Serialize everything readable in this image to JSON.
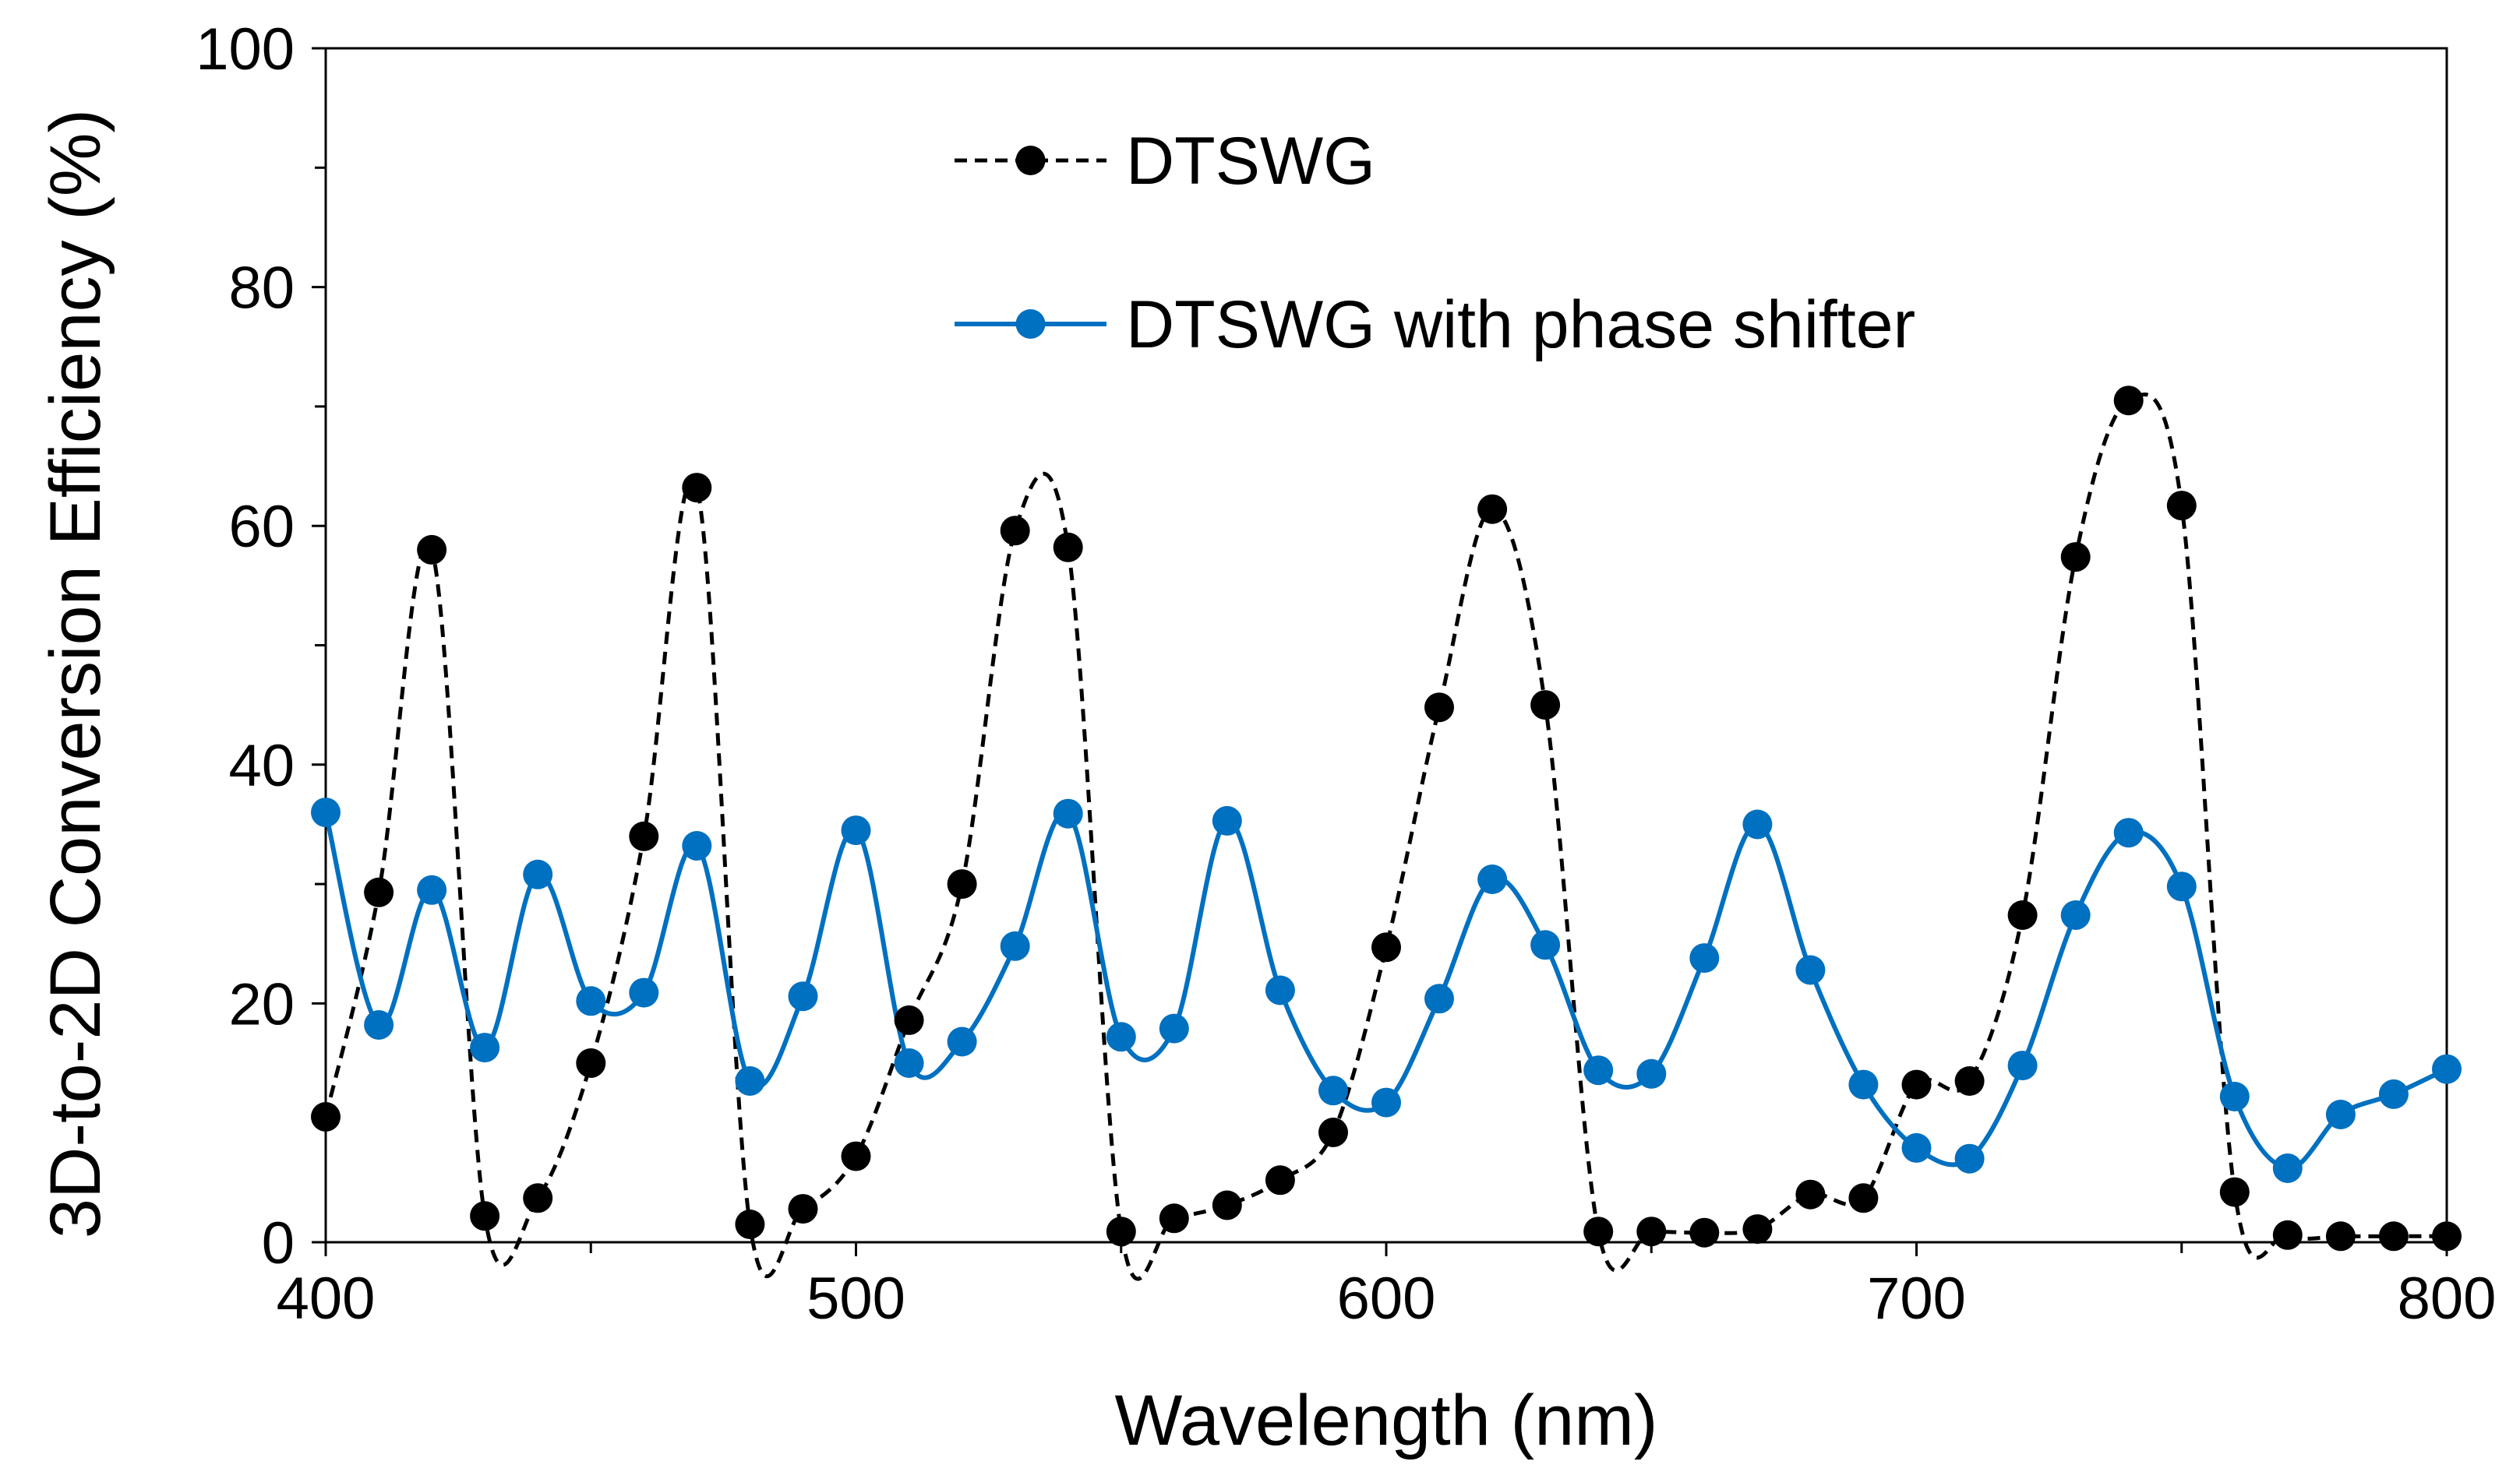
{
  "chart_data": {
    "type": "line",
    "title": "",
    "xlabel": "Wavelength (nm)",
    "ylabel": "3D-to-2D Conversion Efficiency (%)",
    "xlim": [
      400,
      800
    ],
    "ylim": [
      0,
      100
    ],
    "xticks": [
      400,
      500,
      600,
      700,
      800
    ],
    "yticks": [
      0,
      20,
      40,
      60,
      80,
      100
    ],
    "grid": false,
    "legend_position": "top-center",
    "series": [
      {
        "name": "DTSWG",
        "color": "#000000",
        "line_style": "dashed",
        "marker": "circle",
        "x": [
          400,
          410,
          420,
          430,
          440,
          450,
          460,
          470,
          480,
          490,
          500,
          510,
          520,
          530,
          540,
          550,
          560,
          570,
          580,
          590,
          600,
          610,
          620,
          630,
          640,
          650,
          660,
          670,
          680,
          690,
          700,
          710,
          720,
          730,
          740,
          750,
          760,
          770,
          780,
          790,
          800
        ],
        "y": [
          10.5,
          29.3,
          58.0,
          2.2,
          3.7,
          15.0,
          34.0,
          63.2,
          1.5,
          2.8,
          7.2,
          18.6,
          30.0,
          59.6,
          58.2,
          0.9,
          2.0,
          3.1,
          5.2,
          9.2,
          24.7,
          44.8,
          61.4,
          45.0,
          0.9,
          0.9,
          0.8,
          1.1,
          4.0,
          3.7,
          13.2,
          13.5,
          27.4,
          57.4,
          70.5,
          61.7,
          4.2,
          0.6,
          0.5,
          0.5,
          0.5
        ]
      },
      {
        "name": "DTSWG with phase shifter",
        "color": "#0070c0",
        "line_style": "solid",
        "marker": "circle",
        "x": [
          400,
          410,
          420,
          430,
          440,
          450,
          460,
          470,
          480,
          490,
          500,
          510,
          520,
          530,
          540,
          550,
          560,
          570,
          580,
          590,
          600,
          610,
          620,
          630,
          640,
          650,
          660,
          670,
          680,
          690,
          700,
          710,
          720,
          730,
          740,
          750,
          760,
          770,
          780,
          790,
          800
        ],
        "y": [
          36.0,
          18.2,
          29.5,
          16.3,
          30.8,
          20.2,
          20.9,
          33.2,
          13.5,
          20.6,
          34.5,
          15.0,
          16.8,
          24.8,
          35.9,
          17.2,
          17.9,
          35.3,
          21.1,
          12.7,
          11.7,
          20.4,
          30.4,
          24.9,
          14.4,
          14.1,
          23.8,
          35.0,
          22.8,
          13.2,
          7.9,
          7.0,
          14.8,
          27.4,
          34.3,
          29.8,
          12.2,
          6.2,
          10.7,
          12.4,
          14.5
        ]
      }
    ]
  }
}
